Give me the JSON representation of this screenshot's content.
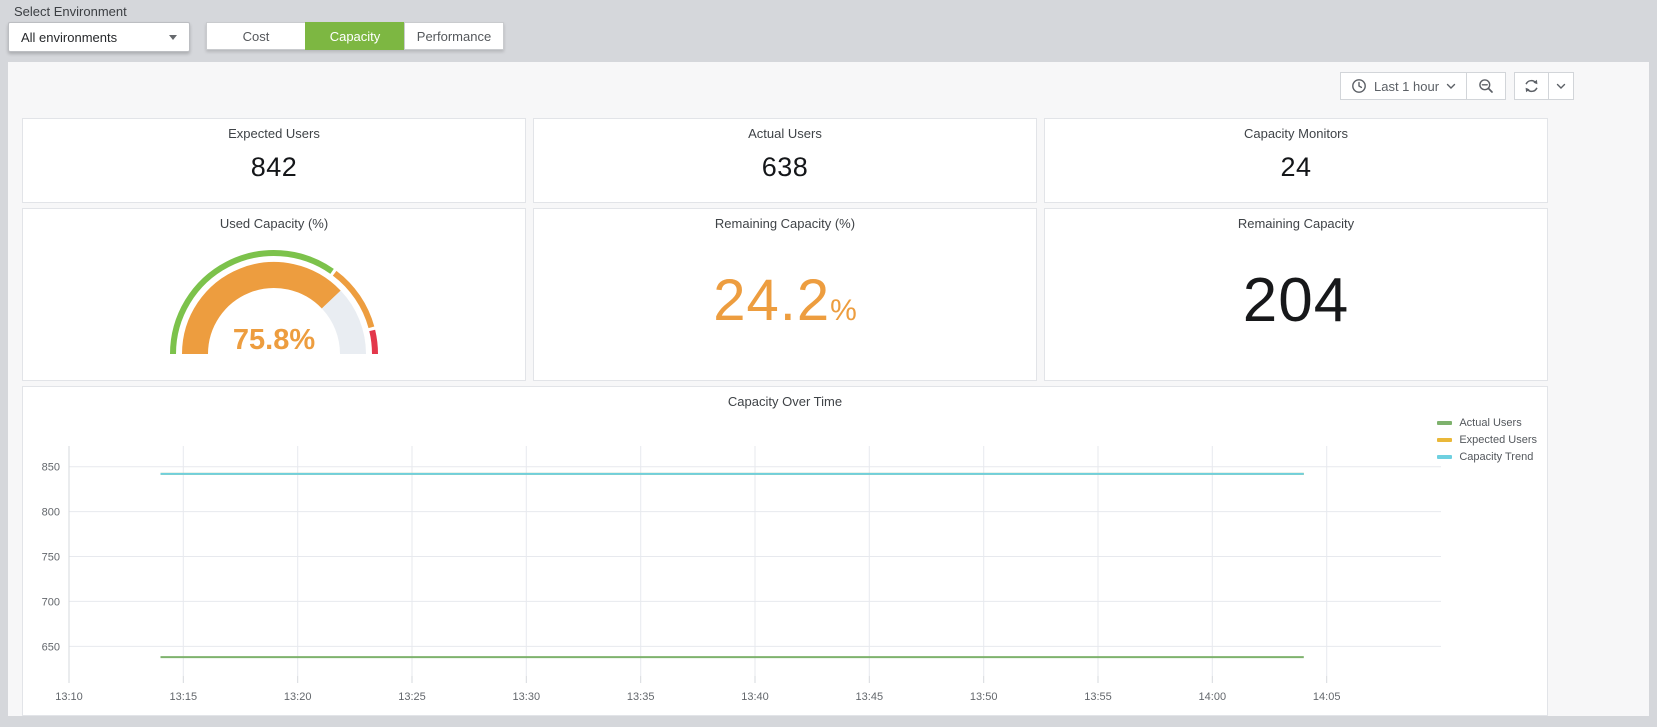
{
  "env_bar": {
    "label": "Select Environment",
    "dropdown": {
      "value": "All environments",
      "icon": "chevron-down-icon"
    },
    "tabs": [
      {
        "label": "Cost",
        "active": false
      },
      {
        "label": "Capacity",
        "active": true
      },
      {
        "label": "Performance",
        "active": false
      }
    ],
    "active_tab_color": "#7db742"
  },
  "toolbar": {
    "time_label": "Last 1 hour",
    "icons": {
      "time_picker": "clock-icon",
      "time_picker_caret": "chevron-down-icon",
      "zoom_out": "zoom-out-icon",
      "refresh": "refresh-icon",
      "refresh_caret": "chevron-down-icon"
    }
  },
  "stats": [
    {
      "title": "Expected Users",
      "value": "842"
    },
    {
      "title": "Actual Users",
      "value": "638"
    },
    {
      "title": "Capacity Monitors",
      "value": "24"
    }
  ],
  "gauge": {
    "title": "Used Capacity (%)",
    "value": 75.8,
    "display": "75.8%",
    "min": 0,
    "max": 100,
    "thresholds": [
      {
        "from": 0,
        "to": 70,
        "color": "#7cc24b"
      },
      {
        "from": 70,
        "to": 92,
        "color": "#ed9d3f"
      },
      {
        "from": 92,
        "to": 100,
        "color": "#e3374b"
      }
    ],
    "fill_color": "#ed9d3f",
    "track_color": "#e9edf2"
  },
  "big_stats": [
    {
      "title": "Remaining Capacity (%)",
      "value": "24.2",
      "suffix": "%",
      "color": "#ed9d3f"
    },
    {
      "title": "Remaining Capacity",
      "value": "204",
      "suffix": "",
      "color": "#17181a"
    }
  ],
  "chart_data": {
    "type": "line",
    "title": "Capacity Over Time",
    "xlabel": "",
    "ylabel": "",
    "grid": true,
    "grid_color": "#e7e9ee",
    "axis_color": "#d6d9de",
    "legend_position": "right",
    "xlim": [
      0,
      60
    ],
    "ylim": [
      617,
      873
    ],
    "y_ticks": [
      650,
      700,
      750,
      800,
      850
    ],
    "x_ticks": [
      {
        "m": 0,
        "label": "13:10"
      },
      {
        "m": 5,
        "label": "13:15"
      },
      {
        "m": 10,
        "label": "13:20"
      },
      {
        "m": 15,
        "label": "13:25"
      },
      {
        "m": 20,
        "label": "13:30"
      },
      {
        "m": 25,
        "label": "13:35"
      },
      {
        "m": 30,
        "label": "13:40"
      },
      {
        "m": 35,
        "label": "13:45"
      },
      {
        "m": 40,
        "label": "13:50"
      },
      {
        "m": 45,
        "label": "13:55"
      },
      {
        "m": 50,
        "label": "14:00"
      },
      {
        "m": 55,
        "label": "14:05"
      }
    ],
    "series": [
      {
        "name": "Actual Users",
        "color": "#7EB26D",
        "x": [
          4,
          54
        ],
        "y": [
          638,
          638
        ]
      },
      {
        "name": "Expected Users",
        "color": "#EAB839",
        "x": [
          4,
          54
        ],
        "y": [
          842,
          842
        ]
      },
      {
        "name": "Capacity Trend",
        "color": "#6ED0E0",
        "x": [
          4,
          54
        ],
        "y": [
          842,
          842
        ]
      }
    ]
  }
}
